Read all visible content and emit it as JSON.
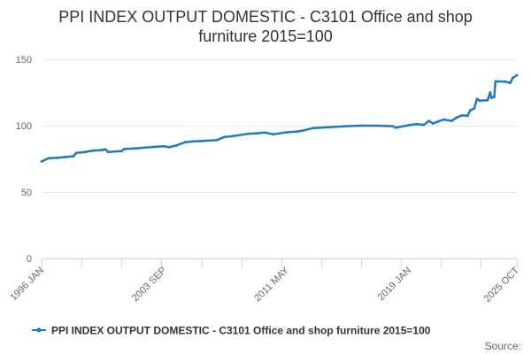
{
  "chart_data": {
    "type": "line",
    "title": "PPI INDEX OUTPUT DOMESTIC - C3101 Office and shop furniture 2015=100",
    "title_lines": [
      "PPI INDEX OUTPUT DOMESTIC - C3101 Office and shop",
      "furniture 2015=100"
    ],
    "xlabel": "",
    "ylabel": "",
    "ylim": [
      0,
      150
    ],
    "yticks": [
      0,
      50,
      100,
      150
    ],
    "xlim": [
      "1996 JAN",
      "2025 OCT"
    ],
    "xtick_labels": [
      "1996 JAN",
      "2003 SEP",
      "2011 MAY",
      "2019 JAN",
      "2025 OCT"
    ],
    "grid": true,
    "legend": "bottom-center",
    "credits": "Source:",
    "colors": {
      "series": "#1f7bbf",
      "grid": "#e6e6e6",
      "axis": "#ccd6eb"
    },
    "series": [
      {
        "name": "PPI INDEX OUTPUT DOMESTIC - C3101 Office and shop furniture 2015=100",
        "points": [
          [
            "1996 JAN",
            73.0
          ],
          [
            "1996 JUN",
            75.4
          ],
          [
            "1997 JAN",
            75.8
          ],
          [
            "1997 JUL",
            76.4
          ],
          [
            "1998 JAN",
            77.0
          ],
          [
            "1998 MAR",
            79.5
          ],
          [
            "1998 OCT",
            80.2
          ],
          [
            "1999 APR",
            81.3
          ],
          [
            "1999 OCT",
            81.6
          ],
          [
            "2000 JAN",
            82.2
          ],
          [
            "2000 MAR",
            80.2
          ],
          [
            "2001 JAN",
            80.8
          ],
          [
            "2001 MAR",
            82.4
          ],
          [
            "2002 JAN",
            83.0
          ],
          [
            "2003 JAN",
            84.0
          ],
          [
            "2003 SEP",
            84.5
          ],
          [
            "2004 JAN",
            83.8
          ],
          [
            "2004 JUN",
            85.0
          ],
          [
            "2005 JAN",
            87.6
          ],
          [
            "2005 JUL",
            88.2
          ],
          [
            "2006 JAN",
            88.4
          ],
          [
            "2007 JAN",
            89.2
          ],
          [
            "2007 JUN",
            91.4
          ],
          [
            "2008 JAN",
            92.2
          ],
          [
            "2009 JAN",
            94.0
          ],
          [
            "2009 JUL",
            94.3
          ],
          [
            "2010 JAN",
            94.8
          ],
          [
            "2010 JUL",
            93.5
          ],
          [
            "2011 MAY",
            95.0
          ],
          [
            "2012 JAN",
            95.6
          ],
          [
            "2012 JUN",
            96.5
          ],
          [
            "2013 JAN",
            98.2
          ],
          [
            "2014 JAN",
            98.8
          ],
          [
            "2015 JAN",
            99.6
          ],
          [
            "2016 JAN",
            100.0
          ],
          [
            "2017 JAN",
            100.0
          ],
          [
            "2018 JAN",
            99.6
          ],
          [
            "2018 MAR",
            98.4
          ],
          [
            "2019 JAN",
            100.4
          ],
          [
            "2019 JUL",
            101.2
          ],
          [
            "2019 DEC",
            100.6
          ],
          [
            "2020 APR",
            103.6
          ],
          [
            "2020 JUL",
            101.6
          ],
          [
            "2020 NOV",
            103.2
          ],
          [
            "2021 MAR",
            104.6
          ],
          [
            "2021 SEP",
            103.6
          ],
          [
            "2022 JAN",
            106.2
          ],
          [
            "2022 MAY",
            107.8
          ],
          [
            "2022 SEP",
            107.4
          ],
          [
            "2022 NOV",
            111.6
          ],
          [
            "2023 FEB",
            113.0
          ],
          [
            "2023 APR",
            120.2
          ],
          [
            "2023 JUN",
            118.8
          ],
          [
            "2023 DEC",
            119.2
          ],
          [
            "2024 FEB",
            125.0
          ],
          [
            "2024 MAR",
            121.0
          ],
          [
            "2024 MAY",
            121.6
          ],
          [
            "2024 JUN",
            133.4
          ],
          [
            "2025 JAN",
            133.2
          ],
          [
            "2025 MAY",
            132.2
          ],
          [
            "2025 JUL",
            136.0
          ],
          [
            "2025 OCT",
            138.0
          ]
        ]
      }
    ]
  }
}
